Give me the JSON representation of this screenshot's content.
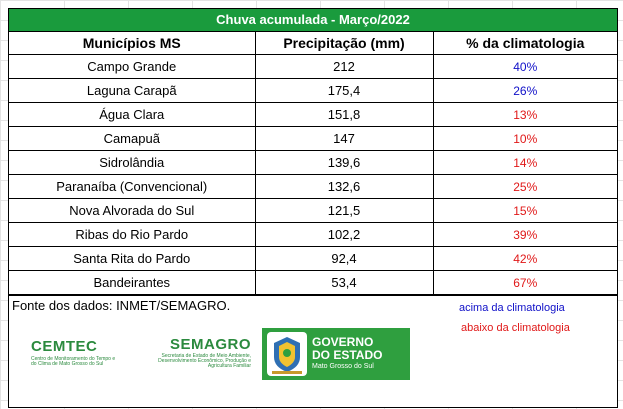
{
  "table": {
    "title": "Chuva acumulada - Março/2022",
    "headers": [
      "Municípios MS",
      "Precipitação (mm)",
      "% da climatologia"
    ],
    "rows": [
      {
        "municipio": "Campo Grande",
        "precip": "212",
        "pct": "40%",
        "pct_color": "#1010c8"
      },
      {
        "municipio": "Laguna Carapã",
        "precip": "175,4",
        "pct": "26%",
        "pct_color": "#1010c8"
      },
      {
        "municipio": "Água Clara",
        "precip": "151,8",
        "pct": "13%",
        "pct_color": "#e01818"
      },
      {
        "municipio": "Camapuã",
        "precip": "147",
        "pct": "10%",
        "pct_color": "#e01818"
      },
      {
        "municipio": "Sidrolândia",
        "precip": "139,6",
        "pct": "14%",
        "pct_color": "#e01818"
      },
      {
        "municipio": "Paranaíba (Convencional)",
        "precip": "132,6",
        "pct": "25%",
        "pct_color": "#e01818"
      },
      {
        "municipio": "Nova Alvorada do Sul",
        "precip": "121,5",
        "pct": "15%",
        "pct_color": "#e01818"
      },
      {
        "municipio": "Ribas do Rio Pardo",
        "precip": "102,2",
        "pct": "39%",
        "pct_color": "#e01818"
      },
      {
        "municipio": "Santa Rita do Pardo",
        "precip": "92,4",
        "pct": "42%",
        "pct_color": "#e01818"
      },
      {
        "municipio": "Bandeirantes",
        "precip": "53,4",
        "pct": "67%",
        "pct_color": "#e01818"
      }
    ]
  },
  "footer": {
    "source": "Fonte dos dados: INMET/SEMAGRO.",
    "legend_above": "acima da climatologia",
    "legend_below": "abaixo da climatologia",
    "color_above": "#1010c8",
    "color_below": "#e01818"
  },
  "logos": {
    "cemtec_name": "CEMTEC",
    "cemtec_sub": "Centro de Monitoramento do Tempo e do Clima de Mato Grosso do Sul",
    "semagro_name": "SEMAGRO",
    "semagro_sub": "Secretaria de Estado de Meio Ambiente, Desenvolvimento Econômico, Produção e Agricultura Familiar",
    "gov_line1": "GOVERNO",
    "gov_line2": "DO ESTADO",
    "gov_line3": "Mato Grosso do Sul"
  },
  "colors": {
    "title_bg": "#1a9b3d",
    "logo_green": "#2b8a3e",
    "gov_bg": "#2f9f3f"
  }
}
